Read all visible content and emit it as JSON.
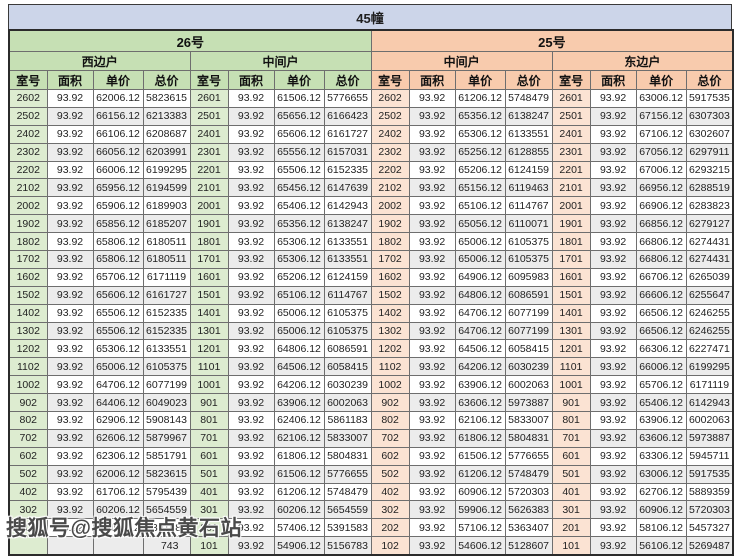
{
  "title": "45幢",
  "watermark": "搜狐号@搜狐焦点黄石站",
  "colors": {
    "title_bar": "#ccd5e9",
    "green_header": "#c6e0b4",
    "green_room_col": "#ddecd0",
    "orange_header": "#f8cbad",
    "orange_room_col": "#fbe3d3",
    "stripe": "#ececec"
  },
  "table": {
    "buildings": [
      {
        "label": "26号",
        "theme": "green",
        "units": [
          {
            "label": "西边户"
          },
          {
            "label": "中间户"
          }
        ]
      },
      {
        "label": "25号",
        "theme": "orange",
        "units": [
          {
            "label": "中间户"
          },
          {
            "label": "东边户"
          }
        ]
      }
    ],
    "column_headers": [
      "室号",
      "面积",
      "单价",
      "总价"
    ],
    "obscured_cell": {
      "section": 0,
      "row": 25,
      "visible_tail": "743",
      "note": "row hidden behind watermark"
    },
    "sections": [
      {
        "building": "26号",
        "unit": "西边户",
        "theme": "green",
        "rows": [
          [
            "2602",
            "93.92",
            "62006.12",
            "5823615"
          ],
          [
            "2502",
            "93.92",
            "66156.12",
            "6213383"
          ],
          [
            "2402",
            "93.92",
            "66106.12",
            "6208687"
          ],
          [
            "2302",
            "93.92",
            "66056.12",
            "6203991"
          ],
          [
            "2202",
            "93.92",
            "66006.12",
            "6199295"
          ],
          [
            "2102",
            "93.92",
            "65956.12",
            "6194599"
          ],
          [
            "2002",
            "93.92",
            "65906.12",
            "6189903"
          ],
          [
            "1902",
            "93.92",
            "65856.12",
            "6185207"
          ],
          [
            "1802",
            "93.92",
            "65806.12",
            "6180511"
          ],
          [
            "1702",
            "93.92",
            "65806.12",
            "6180511"
          ],
          [
            "1602",
            "93.92",
            "65706.12",
            "6171119"
          ],
          [
            "1502",
            "93.92",
            "65606.12",
            "6161727"
          ],
          [
            "1402",
            "93.92",
            "65506.12",
            "6152335"
          ],
          [
            "1302",
            "93.92",
            "65506.12",
            "6152335"
          ],
          [
            "1202",
            "93.92",
            "65306.12",
            "6133551"
          ],
          [
            "1102",
            "93.92",
            "65006.12",
            "6105375"
          ],
          [
            "1002",
            "93.92",
            "64706.12",
            "6077199"
          ],
          [
            "902",
            "93.92",
            "64406.12",
            "6049023"
          ],
          [
            "802",
            "93.92",
            "62906.12",
            "5908143"
          ],
          [
            "702",
            "93.92",
            "62606.12",
            "5879967"
          ],
          [
            "602",
            "93.92",
            "62306.12",
            "5851791"
          ],
          [
            "502",
            "93.92",
            "62006.12",
            "5823615"
          ],
          [
            "402",
            "93.92",
            "61706.12",
            "5795439"
          ],
          [
            "302",
            "93.92",
            "60206.12",
            "5654559"
          ],
          [
            "202",
            "93.92",
            "57406.12",
            "5391583"
          ],
          [
            "",
            "",
            "",
            "743"
          ]
        ]
      },
      {
        "building": "26号",
        "unit": "中间户",
        "theme": "green",
        "rows": [
          [
            "2601",
            "93.92",
            "61506.12",
            "5776655"
          ],
          [
            "2501",
            "93.92",
            "65656.12",
            "6166423"
          ],
          [
            "2401",
            "93.92",
            "65606.12",
            "6161727"
          ],
          [
            "2301",
            "93.92",
            "65556.12",
            "6157031"
          ],
          [
            "2201",
            "93.92",
            "65506.12",
            "6152335"
          ],
          [
            "2101",
            "93.92",
            "65456.12",
            "6147639"
          ],
          [
            "2001",
            "93.92",
            "65406.12",
            "6142943"
          ],
          [
            "1901",
            "93.92",
            "65356.12",
            "6138247"
          ],
          [
            "1801",
            "93.92",
            "65306.12",
            "6133551"
          ],
          [
            "1701",
            "93.92",
            "65306.12",
            "6133551"
          ],
          [
            "1601",
            "93.92",
            "65206.12",
            "6124159"
          ],
          [
            "1501",
            "93.92",
            "65106.12",
            "6114767"
          ],
          [
            "1401",
            "93.92",
            "65006.12",
            "6105375"
          ],
          [
            "1301",
            "93.92",
            "65006.12",
            "6105375"
          ],
          [
            "1201",
            "93.92",
            "64806.12",
            "6086591"
          ],
          [
            "1101",
            "93.92",
            "64506.12",
            "6058415"
          ],
          [
            "1001",
            "93.92",
            "64206.12",
            "6030239"
          ],
          [
            "901",
            "93.92",
            "63906.12",
            "6002063"
          ],
          [
            "801",
            "93.92",
            "62406.12",
            "5861183"
          ],
          [
            "701",
            "93.92",
            "62106.12",
            "5833007"
          ],
          [
            "601",
            "93.92",
            "61806.12",
            "5804831"
          ],
          [
            "501",
            "93.92",
            "61506.12",
            "5776655"
          ],
          [
            "401",
            "93.92",
            "61206.12",
            "5748479"
          ],
          [
            "301",
            "93.92",
            "60206.12",
            "5654559"
          ],
          [
            "201",
            "93.92",
            "57406.12",
            "5391583"
          ],
          [
            "101",
            "93.92",
            "54906.12",
            "5156783"
          ]
        ]
      },
      {
        "building": "25号",
        "unit": "中间户",
        "theme": "orange",
        "rows": [
          [
            "2602",
            "93.92",
            "61206.12",
            "5748479"
          ],
          [
            "2502",
            "93.92",
            "65356.12",
            "6138247"
          ],
          [
            "2402",
            "93.92",
            "65306.12",
            "6133551"
          ],
          [
            "2302",
            "93.92",
            "65256.12",
            "6128855"
          ],
          [
            "2202",
            "93.92",
            "65206.12",
            "6124159"
          ],
          [
            "2102",
            "93.92",
            "65156.12",
            "6119463"
          ],
          [
            "2002",
            "93.92",
            "65106.12",
            "6114767"
          ],
          [
            "1902",
            "93.92",
            "65056.12",
            "6110071"
          ],
          [
            "1802",
            "93.92",
            "65006.12",
            "6105375"
          ],
          [
            "1702",
            "93.92",
            "65006.12",
            "6105375"
          ],
          [
            "1602",
            "93.92",
            "64906.12",
            "6095983"
          ],
          [
            "1502",
            "93.92",
            "64806.12",
            "6086591"
          ],
          [
            "1402",
            "93.92",
            "64706.12",
            "6077199"
          ],
          [
            "1302",
            "93.92",
            "64706.12",
            "6077199"
          ],
          [
            "1202",
            "93.92",
            "64506.12",
            "6058415"
          ],
          [
            "1102",
            "93.92",
            "64206.12",
            "6030239"
          ],
          [
            "1002",
            "93.92",
            "63906.12",
            "6002063"
          ],
          [
            "902",
            "93.92",
            "63606.12",
            "5973887"
          ],
          [
            "802",
            "93.92",
            "62106.12",
            "5833007"
          ],
          [
            "702",
            "93.92",
            "61806.12",
            "5804831"
          ],
          [
            "602",
            "93.92",
            "61506.12",
            "5776655"
          ],
          [
            "502",
            "93.92",
            "61206.12",
            "5748479"
          ],
          [
            "402",
            "93.92",
            "60906.12",
            "5720303"
          ],
          [
            "302",
            "93.92",
            "59906.12",
            "5626383"
          ],
          [
            "202",
            "93.92",
            "57106.12",
            "5363407"
          ],
          [
            "102",
            "93.92",
            "54606.12",
            "5128607"
          ]
        ]
      },
      {
        "building": "25号",
        "unit": "东边户",
        "theme": "orange",
        "rows": [
          [
            "2601",
            "93.92",
            "63006.12",
            "5917535"
          ],
          [
            "2501",
            "93.92",
            "67156.12",
            "6307303"
          ],
          [
            "2401",
            "93.92",
            "67106.12",
            "6302607"
          ],
          [
            "2301",
            "93.92",
            "67056.12",
            "6297911"
          ],
          [
            "2201",
            "93.92",
            "67006.12",
            "6293215"
          ],
          [
            "2101",
            "93.92",
            "66956.12",
            "6288519"
          ],
          [
            "2001",
            "93.92",
            "66906.12",
            "6283823"
          ],
          [
            "1901",
            "93.92",
            "66856.12",
            "6279127"
          ],
          [
            "1801",
            "93.92",
            "66806.12",
            "6274431"
          ],
          [
            "1701",
            "93.92",
            "66806.12",
            "6274431"
          ],
          [
            "1601",
            "93.92",
            "66706.12",
            "6265039"
          ],
          [
            "1501",
            "93.92",
            "66606.12",
            "6255647"
          ],
          [
            "1401",
            "93.92",
            "66506.12",
            "6246255"
          ],
          [
            "1301",
            "93.92",
            "66506.12",
            "6246255"
          ],
          [
            "1201",
            "93.92",
            "66306.12",
            "6227471"
          ],
          [
            "1101",
            "93.92",
            "66006.12",
            "6199295"
          ],
          [
            "1001",
            "93.92",
            "65706.12",
            "6171119"
          ],
          [
            "901",
            "93.92",
            "65406.12",
            "6142943"
          ],
          [
            "801",
            "93.92",
            "63906.12",
            "6002063"
          ],
          [
            "701",
            "93.92",
            "63606.12",
            "5973887"
          ],
          [
            "601",
            "93.92",
            "63306.12",
            "5945711"
          ],
          [
            "501",
            "93.92",
            "63006.12",
            "5917535"
          ],
          [
            "401",
            "93.92",
            "62706.12",
            "5889359"
          ],
          [
            "301",
            "93.92",
            "60906.12",
            "5720303"
          ],
          [
            "201",
            "93.92",
            "58106.12",
            "5457327"
          ],
          [
            "101",
            "93.92",
            "56106.12",
            "5269487"
          ]
        ]
      }
    ]
  }
}
